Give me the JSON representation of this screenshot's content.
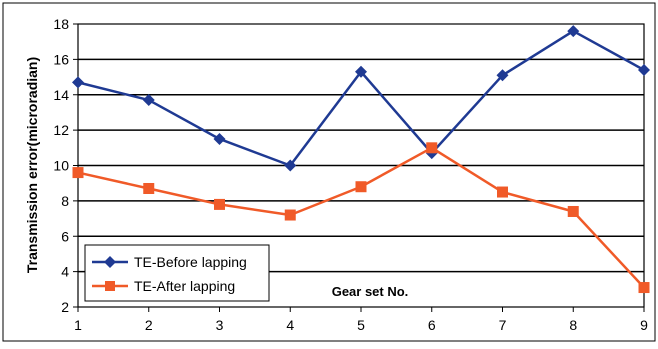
{
  "chart_data": {
    "type": "line",
    "title": "",
    "xlabel": "Gear set No.",
    "ylabel": "Transmission error(microradian)",
    "categories": [
      "1",
      "2",
      "3",
      "4",
      "5",
      "6",
      "7",
      "8",
      "9"
    ],
    "ylim": [
      2,
      18
    ],
    "yticks": [
      "2",
      "4",
      "6",
      "8",
      "10",
      "12",
      "14",
      "16",
      "18"
    ],
    "grid": true,
    "legend_position": "bottom-left",
    "series": [
      {
        "name": "TE-Before lapping",
        "color": "#1f3a93",
        "marker": "diamond",
        "values": [
          14.7,
          13.7,
          11.5,
          10.0,
          15.3,
          10.7,
          15.1,
          17.6,
          15.4
        ]
      },
      {
        "name": "TE-After lapping",
        "color": "#f05a28",
        "marker": "square",
        "values": [
          9.6,
          8.7,
          7.8,
          7.2,
          8.8,
          11.0,
          8.5,
          7.4,
          3.1
        ]
      }
    ]
  }
}
